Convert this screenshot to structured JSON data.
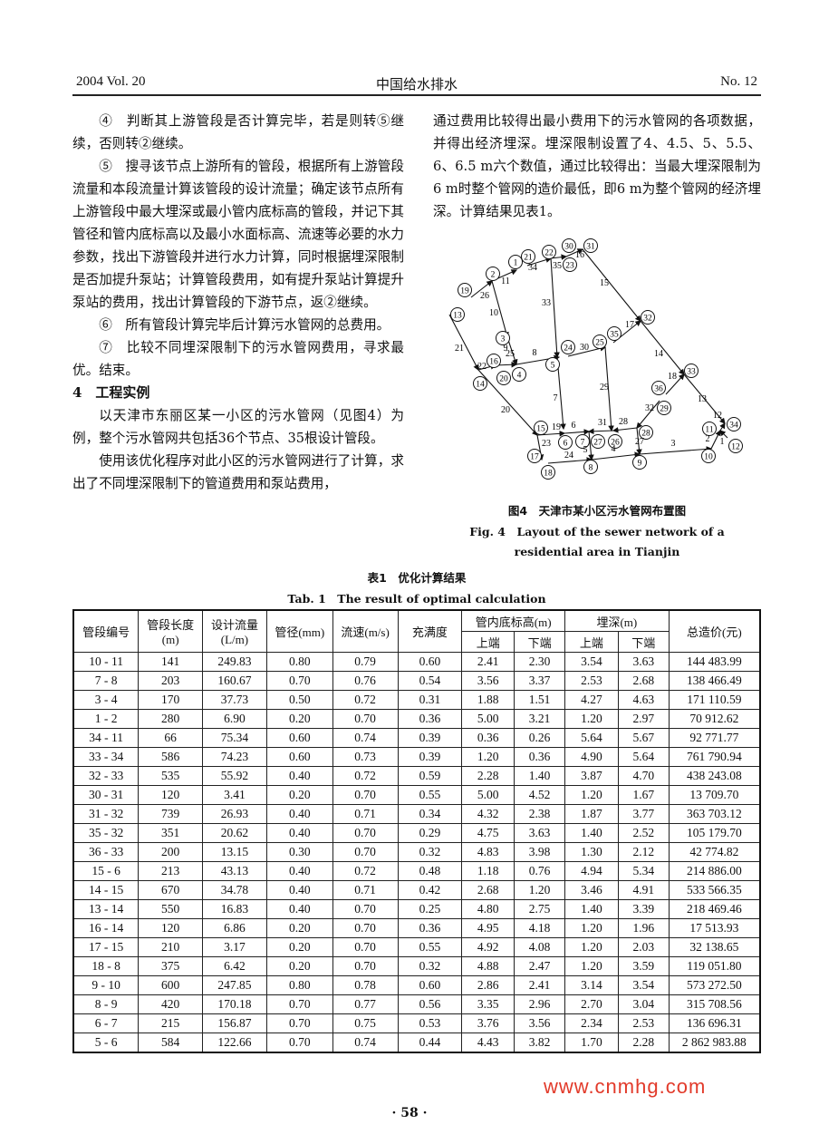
{
  "header": {
    "left": "2004 Vol. 20",
    "center": "中国给水排水",
    "right": "No. 12"
  },
  "left_column": {
    "paragraphs": [
      "④　判断其上游管段是否计算完毕，若是则转⑤继续，否则转②继续。",
      "⑤　搜寻该节点上游所有的管段，根据所有上游管段流量和本段流量计算该管段的设计流量；确定该节点所有上游管段中最大埋深或最小管内底标高的管段，并记下其管径和管内底标高以及最小水面标高、流速等必要的水力参数，找出下游管段并进行水力计算，同时根据埋深限制是否加提升泵站；计算管段费用，如有提升泵站计算提升泵站的费用，找出计算管段的下游节点，返②继续。",
      "⑥　所有管段计算完毕后计算污水管网的总费用。",
      "⑦　比较不同埋深限制下的污水管网费用，寻求最优。结束。"
    ],
    "section_heading": "4　工程实例",
    "section_paragraphs": [
      "以天津市东丽区某一小区的污水管网（见图4）为例，整个污水管网共包括36个节点、35根设计管段。",
      "使用该优化程序对此小区的污水管网进行了计算，求出了不同埋深限制下的管道费用和泵站费用，"
    ]
  },
  "right_column": {
    "paragraph": "通过费用比较得出最小费用下的污水管网的各项数据，并得出经济埋深。埋深限制设置了4、4.5、5、5.5、6、6.5 m六个数值，通过比较得出：当最大埋深限制为6 m时整个管网的造价最低，即6 m为整个管网的经济埋深。计算结果见表1。"
  },
  "figure": {
    "caption_cn": "图4　天津市某小区污水管网布置图",
    "caption_en": "Fig. 4　Layout of the sewer network of a residential area in Tianjin",
    "nodes": [
      "1",
      "2",
      "3",
      "4",
      "5",
      "6",
      "7",
      "8",
      "9",
      "10",
      "11",
      "12",
      "13",
      "14",
      "15",
      "16",
      "17",
      "18",
      "19",
      "20",
      "21",
      "22",
      "23",
      "24",
      "25",
      "26",
      "27",
      "28",
      "29",
      "30",
      "31",
      "32",
      "33",
      "34",
      "35",
      "36"
    ],
    "edges": [
      "26",
      "11",
      "10",
      "9",
      "34",
      "35",
      "16",
      "33",
      "7",
      "15",
      "14",
      "13",
      "17",
      "30",
      "29",
      "8",
      "25",
      "21",
      "22",
      "20",
      "19",
      "6",
      "31",
      "28",
      "32",
      "18",
      "27",
      "23",
      "5",
      "24",
      "4",
      "3",
      "2",
      "1",
      "12"
    ]
  },
  "table": {
    "caption_cn": "表1　优化计算结果",
    "caption_en": "Tab. 1　The result of optimal calculation",
    "headers": {
      "segment": "管段编号",
      "length": "管段长度(m)",
      "flow": "设计流量(L/m)",
      "diameter": "管径(mm)",
      "velocity": "流速(m/s)",
      "fullness": "充满度",
      "invert": "管内底标高(m)",
      "depth": "埋深(m)",
      "upper": "上端",
      "lower": "下端",
      "cost": "总造价(元)"
    },
    "rows": [
      [
        "10 - 11",
        "141",
        "249.83",
        "0.80",
        "0.79",
        "0.60",
        "2.41",
        "2.30",
        "3.54",
        "3.63",
        "144 483.99"
      ],
      [
        "7 - 8",
        "203",
        "160.67",
        "0.70",
        "0.76",
        "0.54",
        "3.56",
        "3.37",
        "2.53",
        "2.68",
        "138 466.49"
      ],
      [
        "3 - 4",
        "170",
        "37.73",
        "0.50",
        "0.72",
        "0.31",
        "1.88",
        "1.51",
        "4.27",
        "4.63",
        "171 110.59"
      ],
      [
        "1 - 2",
        "280",
        "6.90",
        "0.20",
        "0.70",
        "0.36",
        "5.00",
        "3.21",
        "1.20",
        "2.97",
        "70 912.62"
      ],
      [
        "34 - 11",
        "66",
        "75.34",
        "0.60",
        "0.74",
        "0.39",
        "0.36",
        "0.26",
        "5.64",
        "5.67",
        "92 771.77"
      ],
      [
        "33 - 34",
        "586",
        "74.23",
        "0.60",
        "0.73",
        "0.39",
        "1.20",
        "0.36",
        "4.90",
        "5.64",
        "761 790.94"
      ],
      [
        "32 - 33",
        "535",
        "55.92",
        "0.40",
        "0.72",
        "0.59",
        "2.28",
        "1.40",
        "3.87",
        "4.70",
        "438 243.08"
      ],
      [
        "30 - 31",
        "120",
        "3.41",
        "0.20",
        "0.70",
        "0.55",
        "5.00",
        "4.52",
        "1.20",
        "1.67",
        "13 709.70"
      ],
      [
        "31 - 32",
        "739",
        "26.93",
        "0.40",
        "0.71",
        "0.34",
        "4.32",
        "2.38",
        "1.87",
        "3.77",
        "363 703.12"
      ],
      [
        "35 - 32",
        "351",
        "20.62",
        "0.40",
        "0.70",
        "0.29",
        "4.75",
        "3.63",
        "1.40",
        "2.52",
        "105 179.70"
      ],
      [
        "36 - 33",
        "200",
        "13.15",
        "0.30",
        "0.70",
        "0.32",
        "4.83",
        "3.98",
        "1.30",
        "2.12",
        "42 774.82"
      ],
      [
        "15 - 6",
        "213",
        "43.13",
        "0.40",
        "0.72",
        "0.48",
        "1.18",
        "0.76",
        "4.94",
        "5.34",
        "214 886.00"
      ],
      [
        "14 - 15",
        "670",
        "34.78",
        "0.40",
        "0.71",
        "0.42",
        "2.68",
        "1.20",
        "3.46",
        "4.91",
        "533 566.35"
      ],
      [
        "13 - 14",
        "550",
        "16.83",
        "0.40",
        "0.70",
        "0.25",
        "4.80",
        "2.75",
        "1.40",
        "3.39",
        "218 469.46"
      ],
      [
        "16 - 14",
        "120",
        "6.86",
        "0.20",
        "0.70",
        "0.36",
        "4.95",
        "4.18",
        "1.20",
        "1.96",
        "17 513.93"
      ],
      [
        "17 - 15",
        "210",
        "3.17",
        "0.20",
        "0.70",
        "0.55",
        "4.92",
        "4.08",
        "1.20",
        "2.03",
        "32 138.65"
      ],
      [
        "18 - 8",
        "375",
        "6.42",
        "0.20",
        "0.70",
        "0.32",
        "4.88",
        "2.47",
        "1.20",
        "3.59",
        "119 051.80"
      ],
      [
        "9 - 10",
        "600",
        "247.85",
        "0.80",
        "0.78",
        "0.60",
        "2.86",
        "2.41",
        "3.14",
        "3.54",
        "573 272.50"
      ],
      [
        "8 - 9",
        "420",
        "170.18",
        "0.70",
        "0.77",
        "0.56",
        "3.35",
        "2.96",
        "2.70",
        "3.04",
        "315 708.56"
      ],
      [
        "6 - 7",
        "215",
        "156.87",
        "0.70",
        "0.75",
        "0.53",
        "3.76",
        "3.56",
        "2.34",
        "2.53",
        "136 696.31"
      ],
      [
        "5 - 6",
        "584",
        "122.66",
        "0.70",
        "0.74",
        "0.44",
        "4.43",
        "3.82",
        "1.70",
        "2.28",
        "2 862 983.88"
      ]
    ]
  },
  "page_number": "· 58 ·",
  "watermark": "www.cnmhg.com"
}
